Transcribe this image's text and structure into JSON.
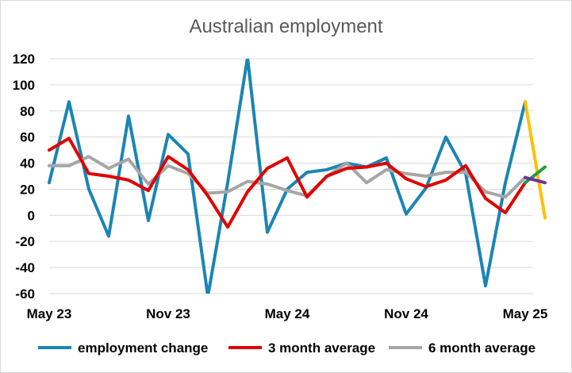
{
  "chart_data": {
    "type": "line",
    "title": "Australian employment",
    "ylim": [
      -60,
      120
    ],
    "yticks": [
      120,
      100,
      80,
      60,
      40,
      20,
      0,
      -20,
      -40,
      -60
    ],
    "xtick_labels": [
      {
        "label": "May 23",
        "index": 0
      },
      {
        "label": "Nov 23",
        "index": 6
      },
      {
        "label": "May 24",
        "index": 12
      },
      {
        "label": "Nov 24",
        "index": 18
      },
      {
        "label": "May 25",
        "index": 24
      }
    ],
    "legend_position": "bottom",
    "series": [
      {
        "name": "employment change",
        "color": "#1a85b4",
        "values": [
          25,
          87,
          20,
          -16,
          76,
          -4,
          62,
          47,
          -62,
          25,
          121,
          -13,
          20,
          33,
          35,
          40,
          37,
          44,
          1,
          21,
          60,
          32,
          -54,
          25,
          87
        ]
      },
      {
        "name": "3 month average",
        "color": "#e00000",
        "values": [
          50,
          59,
          32,
          30,
          27,
          19,
          45,
          35,
          15,
          -9,
          18,
          36,
          44,
          14,
          30,
          36,
          37,
          40,
          28,
          22,
          27,
          38,
          13,
          2,
          25
        ]
      },
      {
        "name": "6 month average",
        "color": "#a6a6a6",
        "values": [
          38,
          38,
          45,
          36,
          43,
          24,
          38,
          32,
          17,
          18,
          26,
          24,
          19,
          15,
          30,
          40,
          25,
          35,
          32,
          30,
          33,
          33,
          18,
          14,
          29
        ]
      }
    ],
    "projections": [
      {
        "color": "#ffc000",
        "from_value": 87,
        "to_value": -2
      },
      {
        "color": "#1aa03a",
        "from_value": 25,
        "to_value": 37
      },
      {
        "color": "#7030a0",
        "from_value": 29,
        "to_value": 25
      }
    ]
  }
}
